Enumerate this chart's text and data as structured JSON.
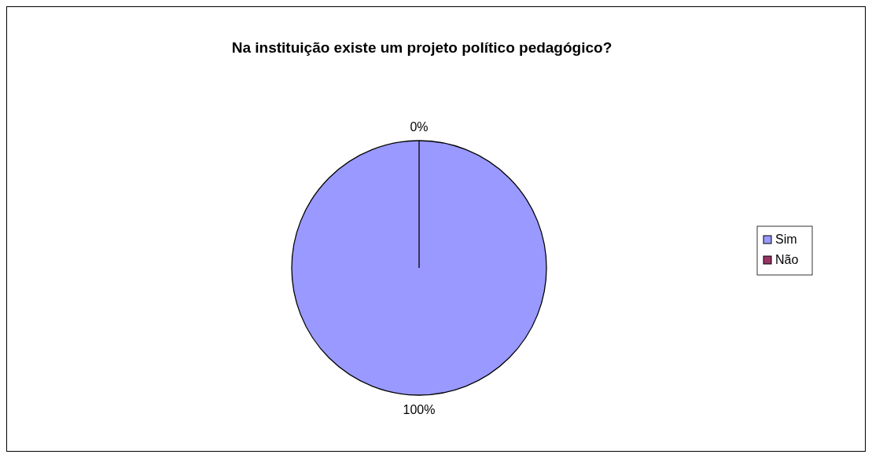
{
  "chart_data": {
    "type": "pie",
    "title": "Na instituição existe um projeto político pedagógico?",
    "categories": [
      "Sim",
      "Não"
    ],
    "values": [
      100,
      0
    ],
    "colors": [
      "#9999ff",
      "#993366"
    ],
    "value_labels": [
      "100%",
      "0%"
    ],
    "legend": "right"
  }
}
